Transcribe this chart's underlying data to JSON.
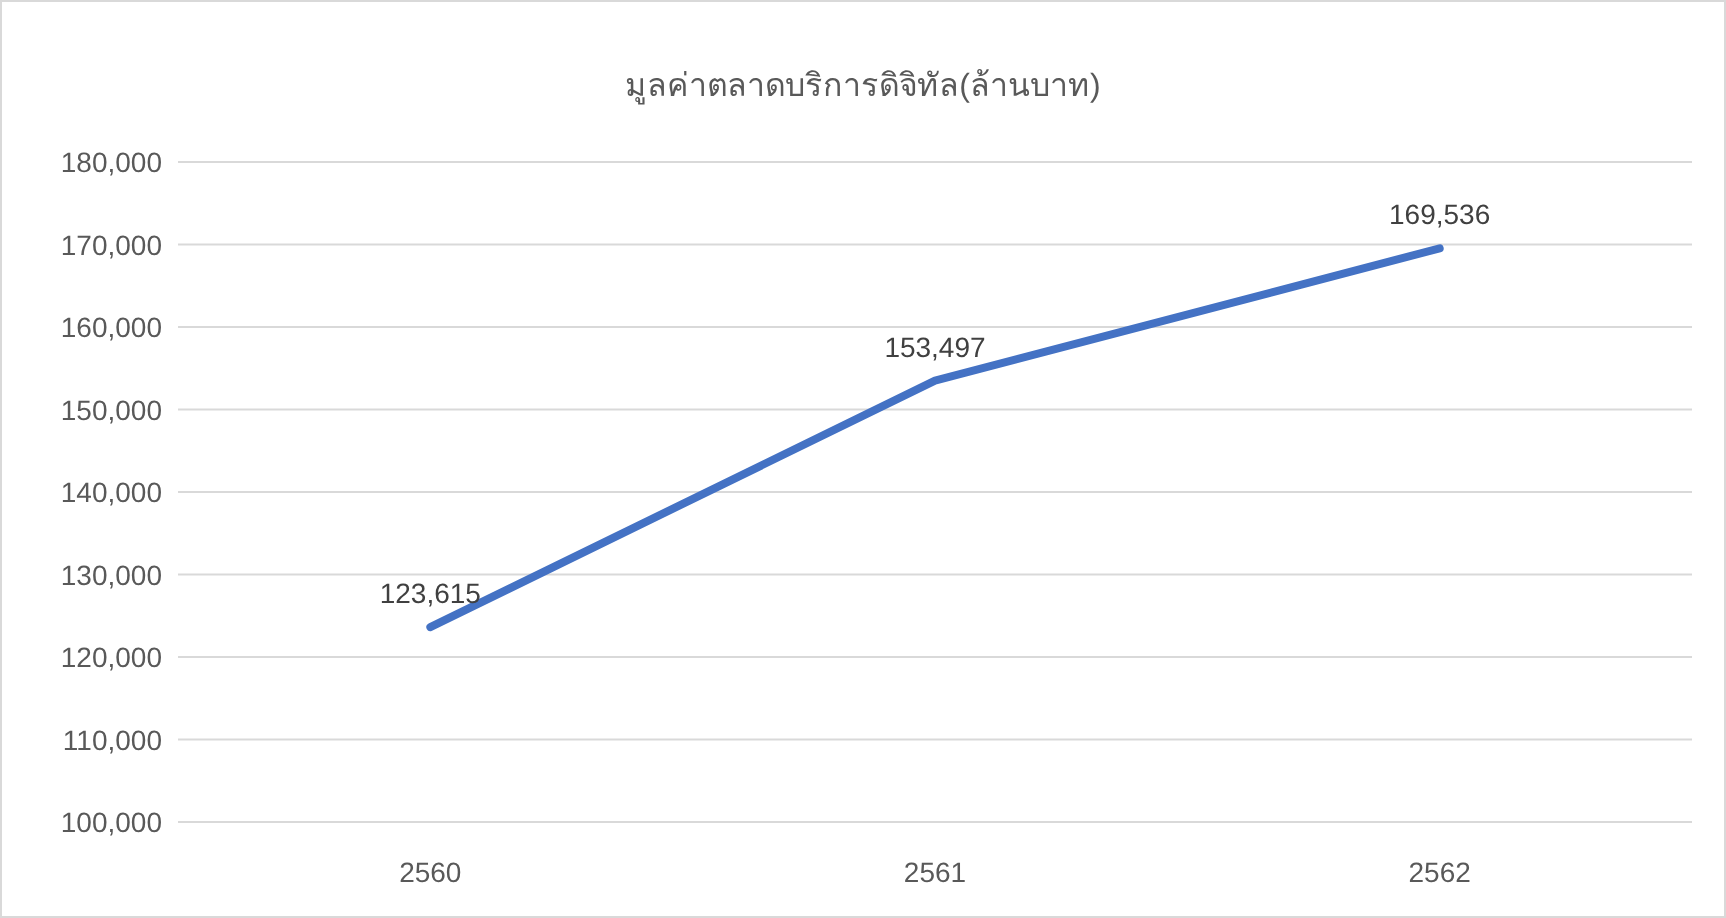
{
  "chart_data": {
    "type": "line",
    "title": "มูลค่าตลาดบริการดิจิทัล(ล้านบาท)",
    "categories": [
      "2560",
      "2561",
      "2562"
    ],
    "series": [
      {
        "color": "#4472c4",
        "values": [
          123615,
          153497,
          169536
        ],
        "value_labels": [
          "123,615",
          "153,497",
          "169,536"
        ]
      }
    ],
    "ylim": [
      100000,
      180000
    ],
    "yticks": [
      {
        "value": 100000,
        "label": "100,000"
      },
      {
        "value": 110000,
        "label": "110,000"
      },
      {
        "value": 120000,
        "label": "120,000"
      },
      {
        "value": 130000,
        "label": "130,000"
      },
      {
        "value": 140000,
        "label": "140,000"
      },
      {
        "value": 150000,
        "label": "150,000"
      },
      {
        "value": 160000,
        "label": "160,000"
      },
      {
        "value": 170000,
        "label": "170,000"
      },
      {
        "value": 180000,
        "label": "180,000"
      }
    ],
    "grid": "y",
    "marker": "none",
    "line_style": "solid"
  }
}
